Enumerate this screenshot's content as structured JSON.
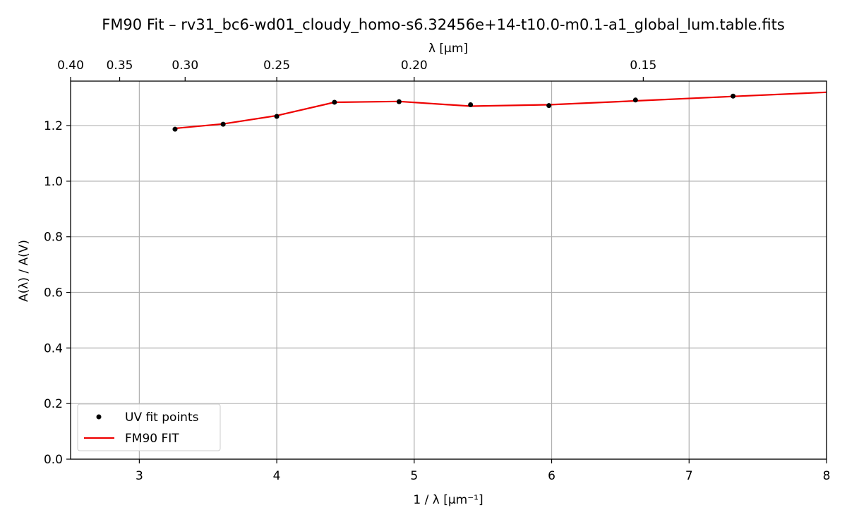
{
  "chart_data": {
    "type": "line",
    "title": "FM90 Fit – rv31_bc6-wd01_cloudy_homo-s6.32456e+14-t10.0-m0.1-a1_global_lum.table.fits",
    "xlabel": "1 / λ [μm⁻¹]",
    "ylabel": "A(λ) / A(V)",
    "top_xlabel": "λ [μm]",
    "xlim": [
      2.5,
      8.0
    ],
    "ylim": [
      0.0,
      1.36
    ],
    "grid": true,
    "legend_position": "lower-left",
    "x_ticks": [
      {
        "value": 3,
        "label": "3"
      },
      {
        "value": 4,
        "label": "4"
      },
      {
        "value": 5,
        "label": "5"
      },
      {
        "value": 6,
        "label": "6"
      },
      {
        "value": 7,
        "label": "7"
      },
      {
        "value": 8,
        "label": "8"
      }
    ],
    "y_ticks": [
      {
        "value": 0.0,
        "label": "0.0"
      },
      {
        "value": 0.2,
        "label": "0.2"
      },
      {
        "value": 0.4,
        "label": "0.4"
      },
      {
        "value": 0.6,
        "label": "0.6"
      },
      {
        "value": 0.8,
        "label": "0.8"
      },
      {
        "value": 1.0,
        "label": "1.0"
      },
      {
        "value": 1.2,
        "label": "1.2"
      }
    ],
    "top_ticks": [
      {
        "value": 0.4,
        "label": "0.40"
      },
      {
        "value": 0.35,
        "label": "0.35"
      },
      {
        "value": 0.3,
        "label": "0.30"
      },
      {
        "value": 0.25,
        "label": "0.25"
      },
      {
        "value": 0.2,
        "label": "0.20"
      },
      {
        "value": 0.15,
        "label": "0.15"
      }
    ],
    "series": [
      {
        "name": "UV fit points",
        "style": "points",
        "color": "#000000",
        "x": [
          3.26,
          3.61,
          4.0,
          4.42,
          4.89,
          5.41,
          5.98,
          6.61,
          7.32
        ],
        "y": [
          1.187,
          1.205,
          1.233,
          1.284,
          1.286,
          1.275,
          1.272,
          1.292,
          1.306
        ]
      },
      {
        "name": "FM90 FIT",
        "style": "line",
        "color": "#ee0000",
        "x": [
          3.26,
          3.61,
          4.0,
          4.42,
          4.89,
          5.41,
          5.98,
          6.61,
          7.32,
          8.0
        ],
        "y": [
          1.19,
          1.206,
          1.236,
          1.284,
          1.287,
          1.27,
          1.275,
          1.289,
          1.305,
          1.32
        ]
      }
    ]
  }
}
